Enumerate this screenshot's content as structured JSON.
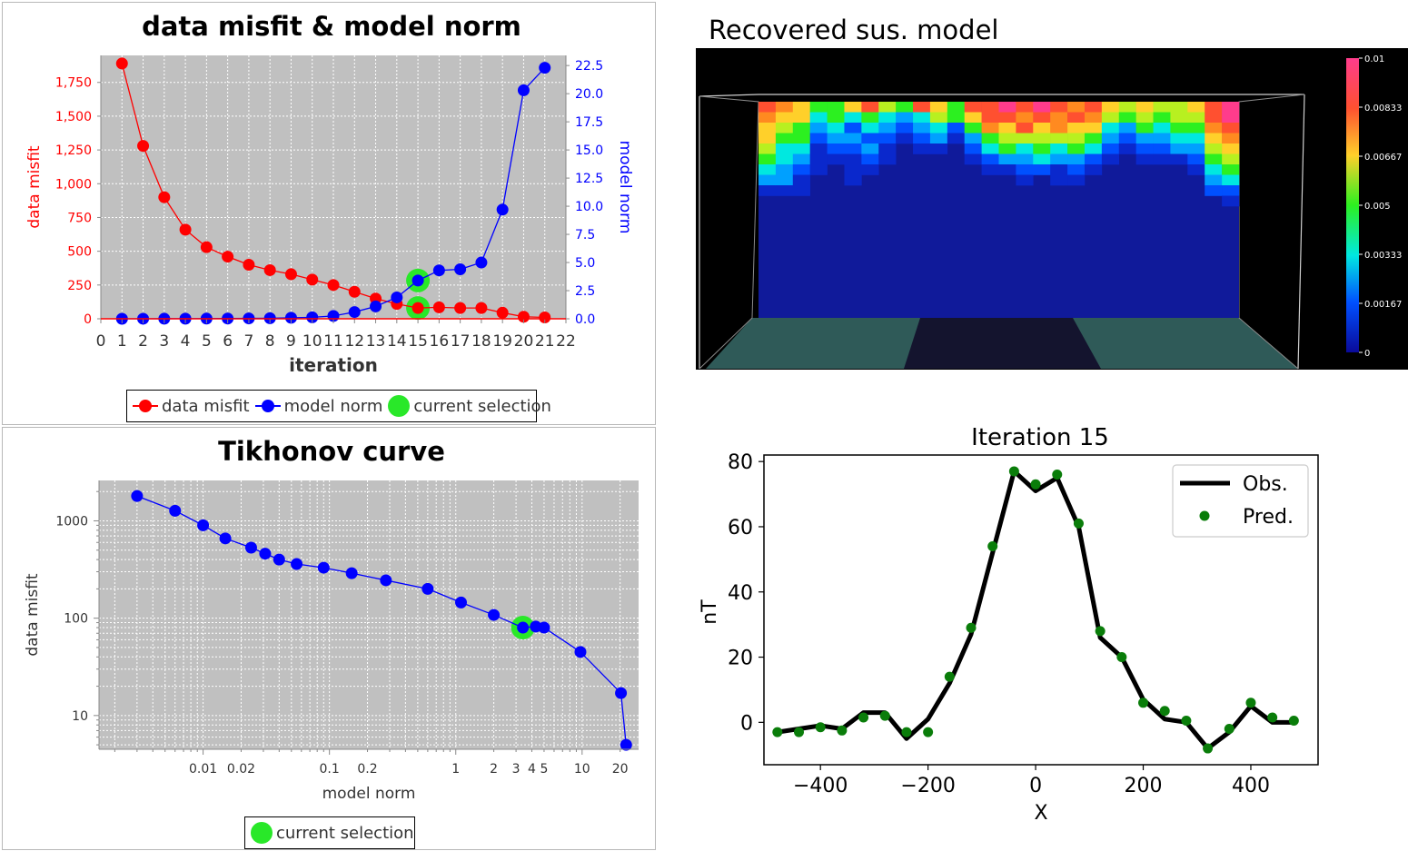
{
  "chart_data": [
    {
      "id": "misfit_norm",
      "type": "line",
      "title": "data misfit & model norm",
      "xlabel": "iteration",
      "ylabel_left": "data misfit",
      "ylabel_right": "model norm",
      "xlim": [
        0,
        22
      ],
      "ylim_left": [
        0,
        1950
      ],
      "ylim_right": [
        0,
        23.4
      ],
      "x_ticks": [
        "0",
        "1",
        "2",
        "3",
        "4",
        "5",
        "6",
        "7",
        "8",
        "9",
        "10",
        "11",
        "12",
        "13",
        "14",
        "15",
        "16",
        "17",
        "18",
        "19",
        "20",
        "21",
        "22"
      ],
      "y_left_ticks": [
        "0",
        "250",
        "500",
        "750",
        "1,000",
        "1,250",
        "1,500",
        "1,750"
      ],
      "y_right_ticks": [
        "0.0",
        "2.5",
        "5.0",
        "7.5",
        "10.0",
        "12.5",
        "15.0",
        "17.5",
        "20.0",
        "22.5"
      ],
      "x": [
        1,
        2,
        3,
        4,
        5,
        6,
        7,
        8,
        9,
        10,
        11,
        12,
        13,
        14,
        15,
        16,
        17,
        18,
        19,
        20,
        21
      ],
      "series": [
        {
          "name": "data misfit",
          "color": "#ff0000",
          "axis": "left",
          "values": [
            1890,
            1280,
            900,
            660,
            530,
            460,
            400,
            360,
            330,
            290,
            250,
            200,
            150,
            110,
            80,
            85,
            80,
            80,
            45,
            15,
            10
          ]
        },
        {
          "name": "model norm",
          "color": "#0000ff",
          "axis": "right",
          "values": [
            0.001,
            0.003,
            0.006,
            0.01,
            0.016,
            0.024,
            0.035,
            0.05,
            0.09,
            0.13,
            0.25,
            0.6,
            1.1,
            1.9,
            3.4,
            4.3,
            4.4,
            5.0,
            9.7,
            20.3,
            22.3
          ]
        }
      ],
      "selection": {
        "name": "current selection",
        "color": "#29e829",
        "x": 15
      },
      "legend": [
        "data misfit",
        "model norm",
        "current selection"
      ]
    },
    {
      "id": "tikhonov",
      "type": "scatter",
      "title": "Tikhonov curve",
      "xlabel": "model norm",
      "ylabel": "data misfit",
      "x_scale": "log",
      "y_scale": "log",
      "xlim": [
        0.0015,
        28
      ],
      "ylim": [
        4.5,
        2600
      ],
      "x_ticks": [
        "0.01",
        "0.02",
        "0.1",
        "0.2",
        "1",
        "2",
        "3",
        "4",
        "5",
        "10",
        "20"
      ],
      "y_ticks": [
        "10",
        "100",
        "1000"
      ],
      "points": [
        [
          0.003,
          1800
        ],
        [
          0.006,
          1270
        ],
        [
          0.01,
          900
        ],
        [
          0.015,
          660
        ],
        [
          0.024,
          530
        ],
        [
          0.031,
          460
        ],
        [
          0.04,
          400
        ],
        [
          0.055,
          360
        ],
        [
          0.09,
          330
        ],
        [
          0.15,
          290
        ],
        [
          0.28,
          245
        ],
        [
          0.6,
          200
        ],
        [
          1.1,
          145
        ],
        [
          2.0,
          108
        ],
        [
          3.4,
          80
        ],
        [
          4.3,
          82
        ],
        [
          5.0,
          80
        ],
        [
          9.7,
          45
        ],
        [
          20.3,
          17
        ],
        [
          22.3,
          5
        ]
      ],
      "line_color": "#0000ff",
      "selected_index": 14,
      "legend": [
        "current selection"
      ]
    },
    {
      "id": "model_view",
      "type": "heatmap",
      "title": "Recovered sus. model",
      "colorbar_ticks": [
        "0.01",
        "0.00833",
        "0.00667",
        "0.005",
        "0.00333",
        "0.00167",
        "0"
      ],
      "colorbar_stops": [
        "#ff3c8c",
        "#ff5030",
        "#ffd02a",
        "#2cf020",
        "#00e8e0",
        "#0050ff",
        "#0a0a9a"
      ],
      "rows": 11,
      "columns": [
        [
          9,
          8,
          7,
          7,
          6,
          5,
          4,
          3,
          1,
          0,
          0
        ],
        [
          8,
          7,
          6,
          5,
          4,
          4,
          3,
          3,
          1,
          0,
          0
        ],
        [
          7,
          7,
          5,
          5,
          4,
          3,
          2,
          1,
          1,
          0,
          0
        ],
        [
          5,
          4,
          3,
          2,
          1,
          1,
          1,
          0,
          0,
          0,
          0
        ],
        [
          5,
          5,
          4,
          3,
          2,
          1,
          0,
          0,
          0,
          0,
          0
        ],
        [
          7,
          4,
          2,
          3,
          2,
          1,
          1,
          1,
          0,
          0,
          0
        ],
        [
          9,
          5,
          4,
          2,
          3,
          2,
          1,
          0,
          0,
          0,
          0
        ],
        [
          6,
          4,
          3,
          2,
          1,
          1,
          0,
          0,
          0,
          0,
          0
        ],
        [
          5,
          3,
          2,
          1,
          0,
          0,
          0,
          0,
          0,
          0,
          0
        ],
        [
          9,
          4,
          3,
          2,
          1,
          0,
          0,
          0,
          0,
          0,
          0
        ],
        [
          7,
          6,
          4,
          3,
          1,
          0,
          0,
          0,
          0,
          0,
          0
        ],
        [
          5,
          5,
          2,
          1,
          0,
          0,
          0,
          0,
          0,
          0,
          0
        ],
        [
          9,
          7,
          5,
          3,
          2,
          1,
          0,
          0,
          0,
          0,
          0
        ],
        [
          9,
          9,
          8,
          5,
          4,
          2,
          1,
          0,
          0,
          0,
          0
        ],
        [
          10,
          9,
          7,
          6,
          5,
          3,
          1,
          0,
          0,
          0,
          0
        ],
        [
          9,
          8,
          9,
          6,
          4,
          3,
          2,
          1,
          0,
          0,
          0
        ],
        [
          10,
          9,
          7,
          6,
          5,
          4,
          2,
          0,
          0,
          0,
          0
        ],
        [
          9,
          8,
          8,
          6,
          4,
          3,
          1,
          1,
          0,
          0,
          0
        ],
        [
          8,
          9,
          7,
          6,
          5,
          3,
          2,
          1,
          0,
          0,
          0
        ],
        [
          9,
          8,
          7,
          5,
          4,
          2,
          1,
          0,
          0,
          0,
          0
        ],
        [
          7,
          6,
          4,
          3,
          2,
          1,
          0,
          0,
          0,
          0,
          0
        ],
        [
          6,
          5,
          3,
          2,
          1,
          0,
          0,
          0,
          0,
          0,
          0
        ],
        [
          7,
          6,
          5,
          3,
          2,
          1,
          0,
          0,
          0,
          0,
          0
        ],
        [
          6,
          5,
          4,
          3,
          2,
          1,
          0,
          0,
          0,
          0,
          0
        ],
        [
          6,
          6,
          5,
          4,
          3,
          1,
          0,
          0,
          0,
          0,
          0
        ],
        [
          7,
          6,
          5,
          4,
          3,
          2,
          1,
          0,
          0,
          0,
          0
        ],
        [
          9,
          9,
          8,
          7,
          6,
          5,
          4,
          3,
          2,
          0,
          0
        ],
        [
          10,
          10,
          9,
          8,
          7,
          6,
          5,
          4,
          2,
          1,
          0
        ]
      ]
    },
    {
      "id": "profile",
      "type": "line",
      "title": "Iteration 15",
      "xlabel": "X",
      "ylabel": "nT",
      "xlim": [
        -505,
        525
      ],
      "ylim": [
        -13,
        82
      ],
      "x_ticks": [
        "−400",
        "−200",
        "0",
        "200",
        "400"
      ],
      "y_ticks": [
        "0",
        "20",
        "40",
        "60",
        "80"
      ],
      "x": [
        -480,
        -440,
        -400,
        -360,
        -320,
        -280,
        -240,
        -200,
        -160,
        -120,
        -80,
        -40,
        0,
        40,
        80,
        120,
        160,
        200,
        240,
        280,
        320,
        360,
        400,
        440,
        480
      ],
      "series": [
        {
          "name": "Obs.",
          "color": "#000000",
          "values": [
            -3,
            -2,
            -1,
            -2,
            3,
            3,
            -5,
            1,
            12,
            27,
            52,
            77,
            71,
            75,
            60,
            26,
            20,
            7,
            1,
            0,
            -8,
            -3,
            5,
            0,
            0
          ]
        },
        {
          "name": "Pred.",
          "color": "#0a7d0a",
          "values": [
            -3,
            -3,
            -1.5,
            -2.5,
            1.5,
            2,
            -3,
            -3,
            14,
            29,
            54,
            77,
            73,
            76,
            61,
            28,
            20,
            6,
            3.5,
            0.5,
            -8,
            -2,
            6,
            1.5,
            0.5
          ]
        }
      ],
      "legend": [
        "Obs.",
        "Pred."
      ]
    }
  ]
}
